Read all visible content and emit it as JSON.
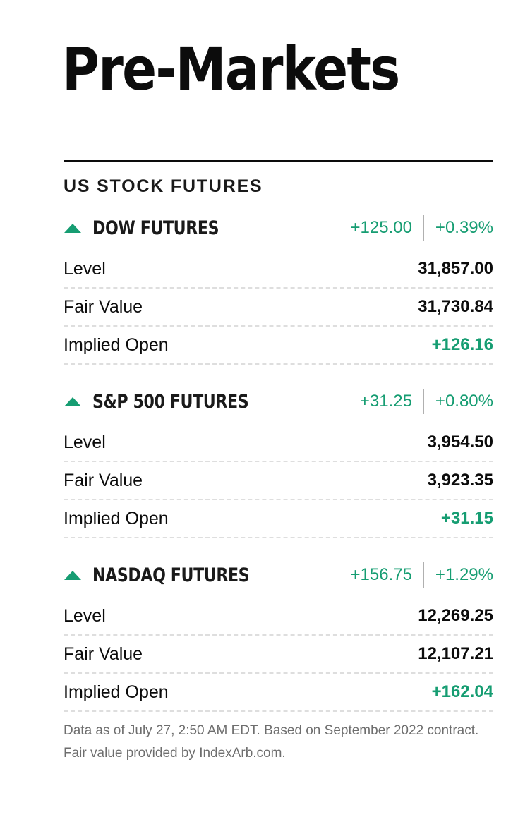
{
  "title": "Pre-Markets",
  "section_heading": "US STOCK FUTURES",
  "colors": {
    "positive": "#169d72",
    "text": "#0c0c0c",
    "muted": "#6e6e6e"
  },
  "futures": [
    {
      "name": "DOW FUTURES",
      "direction_icon": "up-arrow-icon",
      "change": "+125.00",
      "change_percent": "+0.39%",
      "level_label": "Level",
      "level": "31,857.00",
      "fair_value_label": "Fair Value",
      "fair_value": "31,730.84",
      "implied_open_label": "Implied Open",
      "implied_open": "+126.16"
    },
    {
      "name": "S&P 500 FUTURES",
      "direction_icon": "up-arrow-icon",
      "change": "+31.25",
      "change_percent": "+0.80%",
      "level_label": "Level",
      "level": "3,954.50",
      "fair_value_label": "Fair Value",
      "fair_value": "3,923.35",
      "implied_open_label": "Implied Open",
      "implied_open": "+31.15"
    },
    {
      "name": "NASDAQ FUTURES",
      "direction_icon": "up-arrow-icon",
      "change": "+156.75",
      "change_percent": "+1.29%",
      "level_label": "Level",
      "level": "12,269.25",
      "fair_value_label": "Fair Value",
      "fair_value": "12,107.21",
      "implied_open_label": "Implied Open",
      "implied_open": "+162.04"
    }
  ],
  "footnote": "Data as of July 27, 2:50 AM EDT. Based on September 2022 contract. Fair value provided by IndexArb.com."
}
